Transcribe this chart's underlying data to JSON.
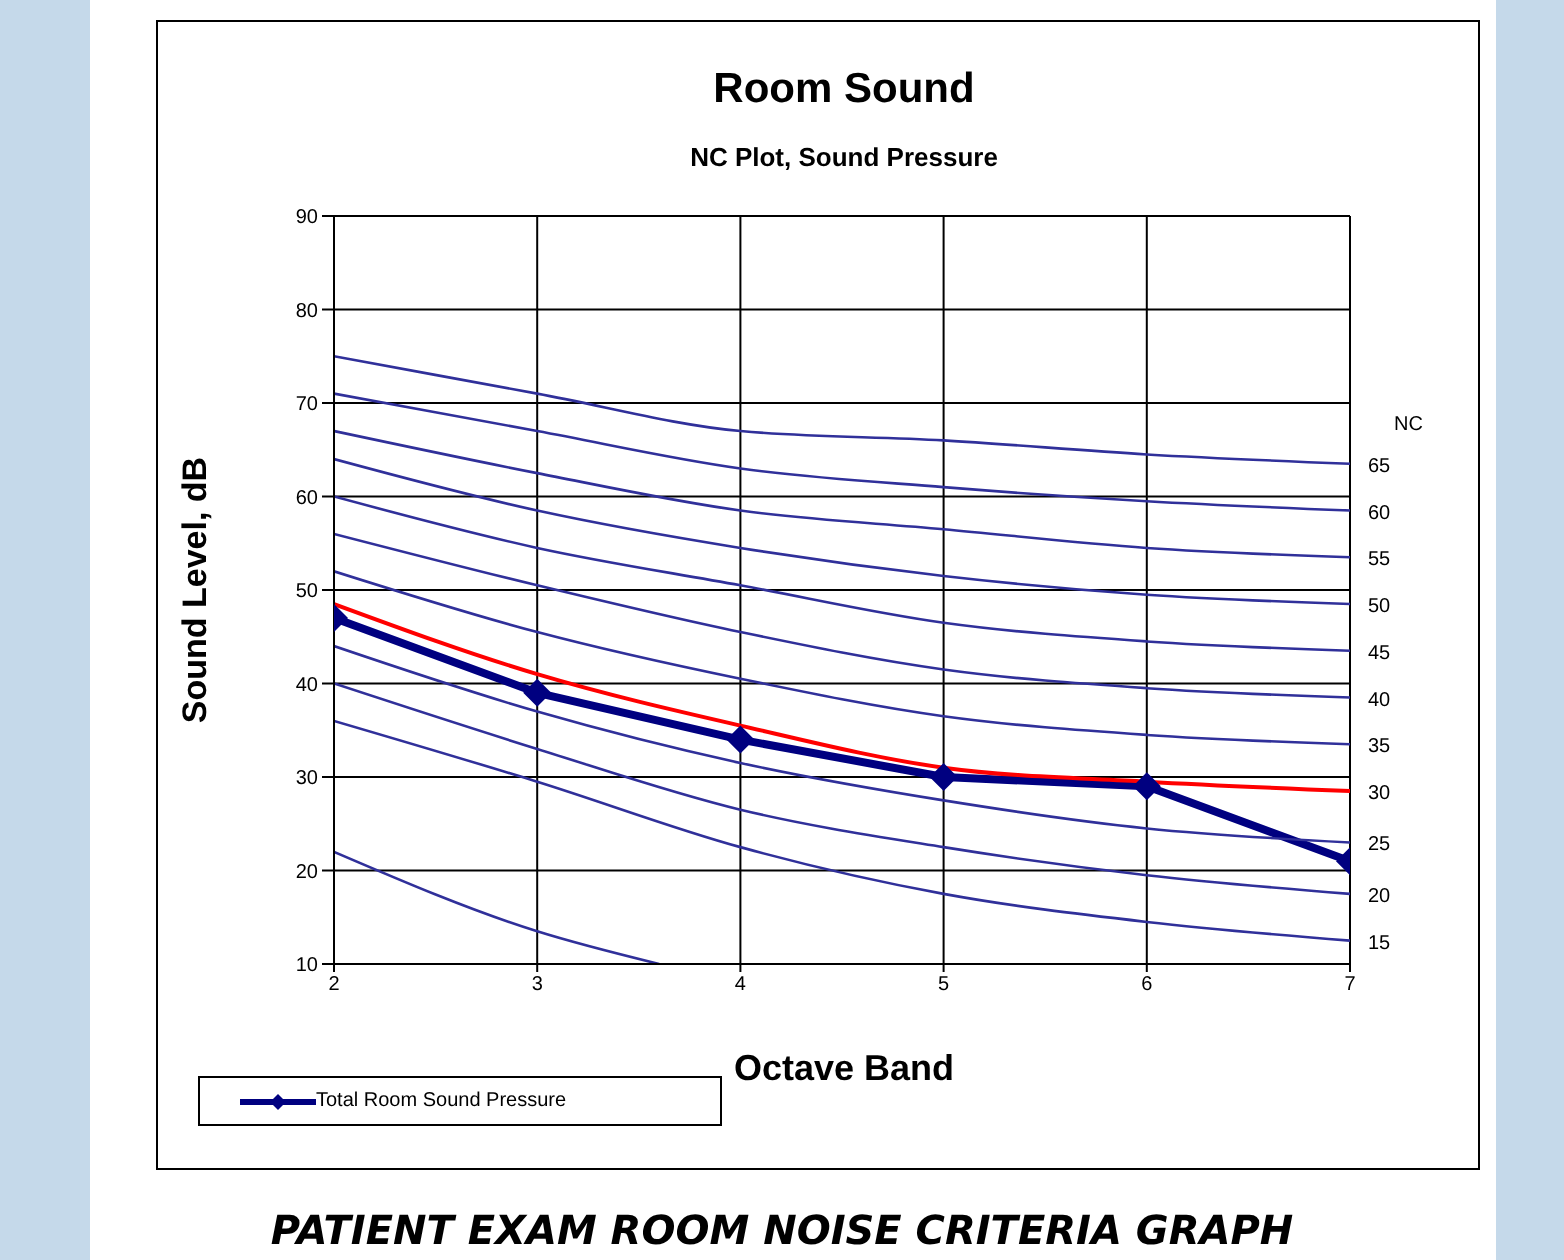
{
  "chart_data": {
    "type": "line",
    "title": "Room Sound",
    "subtitle": "NC Plot, Sound Pressure",
    "xlabel": "Octave Band",
    "ylabel": "Sound Level, dB",
    "x": [
      2,
      3,
      4,
      5,
      6,
      7
    ],
    "xlim": [
      2,
      7
    ],
    "xticks": [
      2,
      3,
      4,
      5,
      6,
      7
    ],
    "ylim": [
      10,
      90
    ],
    "yticks": [
      10,
      20,
      30,
      40,
      50,
      60,
      70,
      80,
      90
    ],
    "grid": true,
    "legend": "bottom left",
    "marker": "none",
    "line_style": "solid",
    "series": [
      {
        "name": "Total Room Sound Pressure",
        "color": "#000080",
        "marker": "diamond",
        "values": [
          47,
          39,
          34,
          30,
          29,
          21
        ]
      },
      {
        "name": "30",
        "color": "#ff0000",
        "values": [
          48.5,
          41,
          35.5,
          31,
          29.5,
          28.5
        ]
      },
      {
        "name": "65",
        "color": "#30309a",
        "values": [
          75,
          71,
          67,
          66,
          64.5,
          63.5
        ]
      },
      {
        "name": "60",
        "color": "#30309a",
        "values": [
          71,
          67,
          63,
          61,
          59.5,
          58.5
        ]
      },
      {
        "name": "55",
        "color": "#30309a",
        "values": [
          67,
          62.5,
          58.5,
          56.5,
          54.5,
          53.5
        ]
      },
      {
        "name": "50",
        "color": "#30309a",
        "values": [
          64,
          58.5,
          54.5,
          51.5,
          49.5,
          48.5
        ]
      },
      {
        "name": "45",
        "color": "#30309a",
        "values": [
          60,
          54.5,
          50.5,
          46.5,
          44.5,
          43.5
        ]
      },
      {
        "name": "40",
        "color": "#30309a",
        "values": [
          56,
          50.5,
          45.5,
          41.5,
          39.5,
          38.5
        ]
      },
      {
        "name": "35",
        "color": "#30309a",
        "values": [
          52,
          45.5,
          40.5,
          36.5,
          34.5,
          33.5
        ]
      },
      {
        "name": "25",
        "color": "#30309a",
        "values": [
          44,
          37,
          31.5,
          27.5,
          24.5,
          23
        ]
      },
      {
        "name": "20",
        "color": "#30309a",
        "values": [
          40,
          33,
          26.5,
          22.5,
          19.5,
          17.5
        ]
      },
      {
        "name": "15",
        "color": "#30309a",
        "values": [
          36,
          29.5,
          22.5,
          17.5,
          14.5,
          12.5
        ]
      },
      {
        "color": "#30309a",
        "x": [
          2,
          3,
          3.6
        ],
        "values": [
          22,
          13.5,
          10
        ]
      }
    ],
    "annotations": [
      "NC",
      "PATIENT EXAM ROOM NOISE CRITERIA GRAPH"
    ]
  }
}
